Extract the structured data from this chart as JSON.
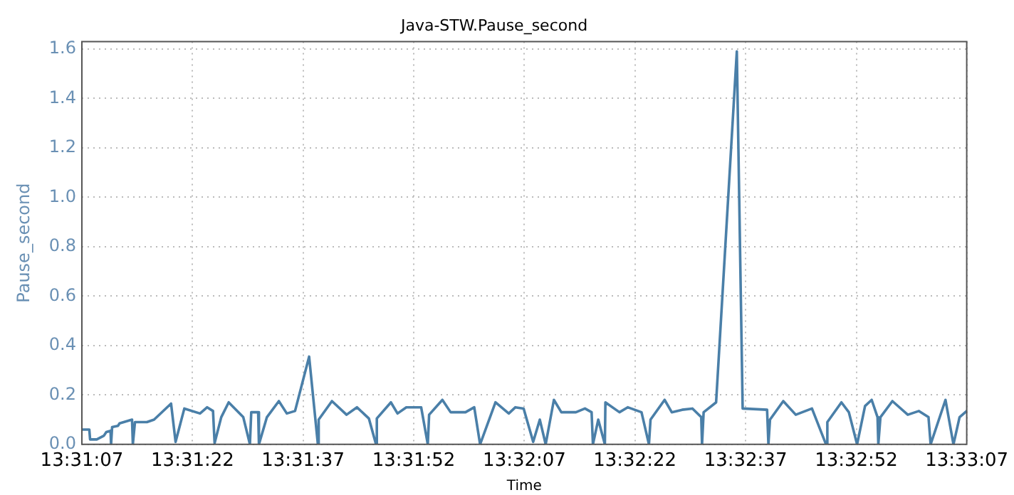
{
  "chart_data": {
    "type": "line",
    "title": "Java-STW.Pause_second",
    "xlabel": "Time",
    "ylabel": "Pause_second",
    "x": [
      13.51861,
      13.51889,
      13.51892,
      13.51917,
      13.51944,
      13.51953,
      13.51969,
      13.51971,
      13.51975,
      13.51997,
      13.52003,
      13.5205,
      13.52053,
      13.52061,
      13.52106,
      13.52133,
      13.52197,
      13.52214,
      13.52247,
      13.52306,
      13.52333,
      13.52355,
      13.52361,
      13.52386,
      13.52414,
      13.52469,
      13.52494,
      13.52499,
      13.52525,
      13.52528,
      13.52558,
      13.52603,
      13.52633,
      13.52664,
      13.52717,
      13.5275,
      13.52753,
      13.52803,
      13.52858,
      13.52897,
      13.52942,
      13.52969,
      13.52972,
      13.53025,
      13.5305,
      13.53083,
      13.53139,
      13.53164,
      13.53169,
      13.53219,
      13.5325,
      13.53306,
      13.53339,
      13.53361,
      13.53419,
      13.53469,
      13.53494,
      13.53525,
      13.53561,
      13.53586,
      13.53608,
      13.53639,
      13.53667,
      13.53722,
      13.53756,
      13.53781,
      13.53786,
      13.53806,
      13.53831,
      13.53833,
      13.53886,
      13.53917,
      13.53969,
      13.53997,
      13.54003,
      13.54056,
      13.54083,
      13.54122,
      13.54161,
      13.54194,
      13.54197,
      13.54203,
      13.5425,
      13.54328,
      13.5435,
      13.54442,
      13.54447,
      13.54453,
      13.54503,
      13.5455,
      13.54611,
      13.54664,
      13.54669,
      13.54722,
      13.5475,
      13.54781,
      13.54811,
      13.54836,
      13.54858,
      13.54861,
      13.54869,
      13.54914,
      13.54972,
      13.55014,
      13.5505,
      13.55058,
      13.55114,
      13.55144,
      13.55167,
      13.55194
    ],
    "series": [
      {
        "color": "#4a7fa8",
        "values": [
          0.06,
          0.06,
          0.02,
          0.02,
          0.035,
          0.05,
          0.055,
          0,
          0.07,
          0.075,
          0.085,
          0.1,
          0,
          0.09,
          0.09,
          0.1,
          0.165,
          0.01,
          0.145,
          0.125,
          0.15,
          0.135,
          0.005,
          0.11,
          0.17,
          0.11,
          0,
          0.13,
          0.13,
          0,
          0.11,
          0.175,
          0.125,
          0.135,
          0.355,
          0,
          0.1,
          0.175,
          0.12,
          0.15,
          0.105,
          0,
          0.105,
          0.17,
          0.125,
          0.15,
          0.15,
          0,
          0.12,
          0.18,
          0.13,
          0.13,
          0.15,
          0,
          0.17,
          0.125,
          0.15,
          0.145,
          0.01,
          0.1,
          0,
          0.18,
          0.13,
          0.13,
          0.145,
          0.13,
          0,
          0.1,
          0,
          0.17,
          0.13,
          0.15,
          0.13,
          0,
          0.1,
          0.18,
          0.13,
          0.14,
          0.145,
          0.11,
          0,
          0.13,
          0.17,
          1.59,
          0.145,
          0.14,
          0,
          0.1,
          0.175,
          0.12,
          0.145,
          0,
          0.09,
          0.17,
          0.13,
          0,
          0.155,
          0.18,
          0.11,
          0,
          0.11,
          0.175,
          0.12,
          0.135,
          0.11,
          0,
          0.18,
          0,
          0.11,
          0.135
        ]
      }
    ],
    "xlim": [
      13.51861,
      13.55194
    ],
    "xticks": [
      {
        "value": 13.51861,
        "label": "13:31:07"
      },
      {
        "value": 13.52278,
        "label": "13:31:22"
      },
      {
        "value": 13.52694,
        "label": "13:31:37"
      },
      {
        "value": 13.53111,
        "label": "13:31:52"
      },
      {
        "value": 13.53528,
        "label": "13:32:07"
      },
      {
        "value": 13.53944,
        "label": "13:32:22"
      },
      {
        "value": 13.54361,
        "label": "13:32:37"
      },
      {
        "value": 13.54778,
        "label": "13:32:52"
      },
      {
        "value": 13.55194,
        "label": "13:33:07"
      }
    ],
    "ylim": [
      0,
      1.63
    ],
    "yticks": [
      {
        "value": 0,
        "label": "0.0"
      },
      {
        "value": 0.2,
        "label": "0.2"
      },
      {
        "value": 0.4,
        "label": "0.4"
      },
      {
        "value": 0.6,
        "label": "0.6"
      },
      {
        "value": 0.8,
        "label": "0.8"
      },
      {
        "value": 1,
        "label": "1.0"
      },
      {
        "value": 1.2,
        "label": "1.2"
      },
      {
        "value": 1.4,
        "label": "1.4"
      },
      {
        "value": 1.6,
        "label": "1.6"
      }
    ],
    "grid": true,
    "line_style": "solid",
    "marker": "none",
    "legend": false
  }
}
